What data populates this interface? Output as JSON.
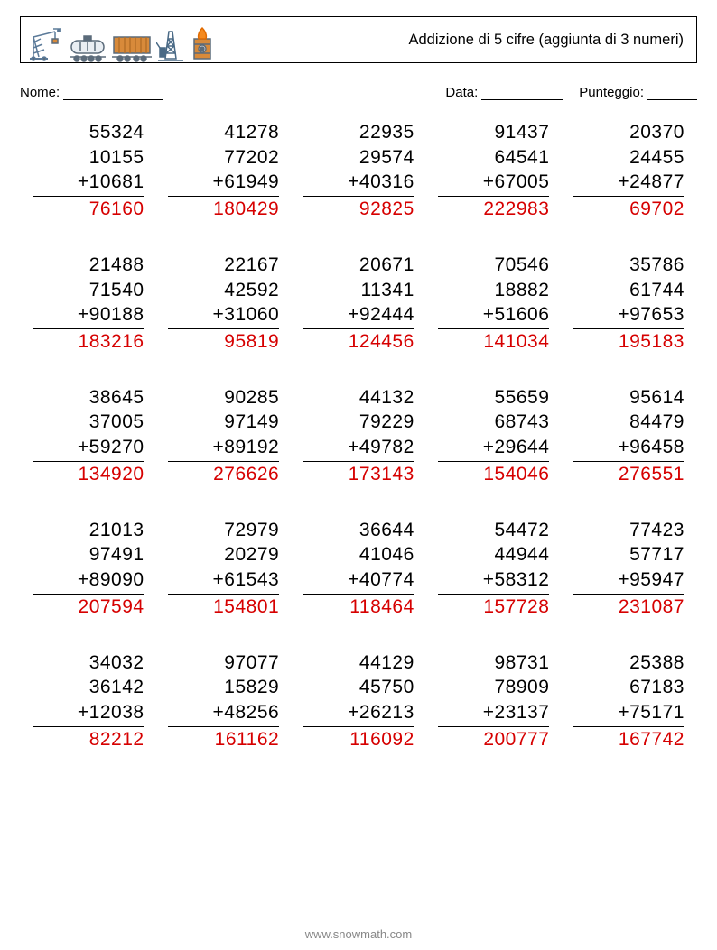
{
  "header": {
    "title": "Addizione di 5 cifre (aggiunta di 3 numeri)"
  },
  "info": {
    "name_label": "Nome:",
    "date_label": "Data:",
    "score_label": "Punteggio:"
  },
  "footer": {
    "text": "www.snowmath.com"
  },
  "problems": [
    {
      "a": "55324",
      "b": "10155",
      "c": "10681",
      "ans": "76160"
    },
    {
      "a": "41278",
      "b": "77202",
      "c": "61949",
      "ans": "180429"
    },
    {
      "a": "22935",
      "b": "29574",
      "c": "40316",
      "ans": "92825"
    },
    {
      "a": "91437",
      "b": "64541",
      "c": "67005",
      "ans": "222983"
    },
    {
      "a": "20370",
      "b": "24455",
      "c": "24877",
      "ans": "69702"
    },
    {
      "a": "21488",
      "b": "71540",
      "c": "90188",
      "ans": "183216"
    },
    {
      "a": "22167",
      "b": "42592",
      "c": "31060",
      "ans": "95819"
    },
    {
      "a": "20671",
      "b": "11341",
      "c": "92444",
      "ans": "124456"
    },
    {
      "a": "70546",
      "b": "18882",
      "c": "51606",
      "ans": "141034"
    },
    {
      "a": "35786",
      "b": "61744",
      "c": "97653",
      "ans": "195183"
    },
    {
      "a": "38645",
      "b": "37005",
      "c": "59270",
      "ans": "134920"
    },
    {
      "a": "90285",
      "b": "97149",
      "c": "89192",
      "ans": "276626"
    },
    {
      "a": "44132",
      "b": "79229",
      "c": "49782",
      "ans": "173143"
    },
    {
      "a": "55659",
      "b": "68743",
      "c": "29644",
      "ans": "154046"
    },
    {
      "a": "95614",
      "b": "84479",
      "c": "96458",
      "ans": "276551"
    },
    {
      "a": "21013",
      "b": "97491",
      "c": "89090",
      "ans": "207594"
    },
    {
      "a": "72979",
      "b": "20279",
      "c": "61543",
      "ans": "154801"
    },
    {
      "a": "36644",
      "b": "41046",
      "c": "40774",
      "ans": "118464"
    },
    {
      "a": "54472",
      "b": "44944",
      "c": "58312",
      "ans": "157728"
    },
    {
      "a": "77423",
      "b": "57717",
      "c": "95947",
      "ans": "231087"
    },
    {
      "a": "34032",
      "b": "36142",
      "c": "12038",
      "ans": "82212"
    },
    {
      "a": "97077",
      "b": "15829",
      "c": "48256",
      "ans": "161162"
    },
    {
      "a": "44129",
      "b": "45750",
      "c": "26213",
      "ans": "116092"
    },
    {
      "a": "98731",
      "b": "78909",
      "c": "23137",
      "ans": "200777"
    },
    {
      "a": "25388",
      "b": "67183",
      "c": "75171",
      "ans": "167742"
    }
  ],
  "style": {
    "answer_color": "#d60000",
    "text_color": "#000000",
    "icon_colors": {
      "crane": "#5b7a99",
      "tankcar": "#5b6b7a",
      "boxcar_body": "#d88a3a",
      "derrick": "#4a6a86",
      "barrel_body": "#d88a3a",
      "flame": "#f58a1f"
    }
  }
}
